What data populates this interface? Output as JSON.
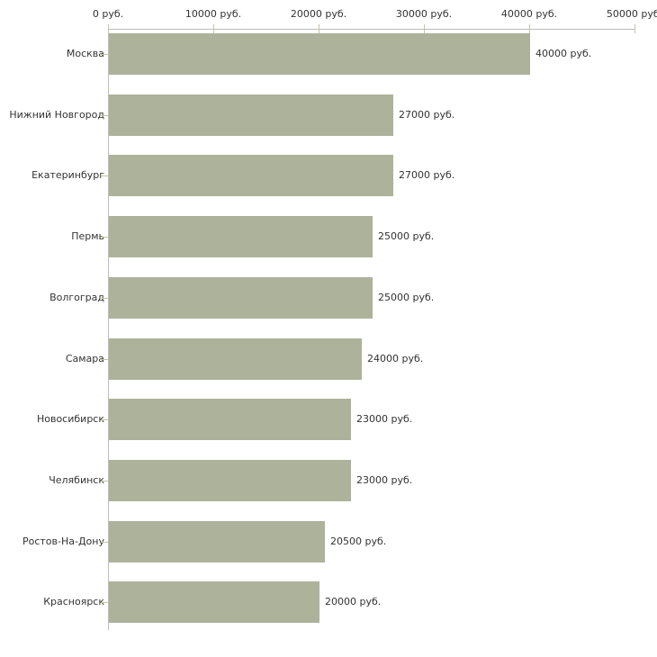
{
  "chart_data": {
    "type": "bar",
    "orientation": "horizontal",
    "title": "",
    "xlabel": "",
    "ylabel": "",
    "grid": false,
    "legend": false,
    "categories": [
      "Москва",
      "Нижний Новгород",
      "Екатеринбург",
      "Пермь",
      "Волгоград",
      "Самара",
      "Новосибирск",
      "Челябинск",
      "Ростов-На-Дону",
      "Красноярск"
    ],
    "values": [
      40000,
      27000,
      27000,
      25000,
      25000,
      24000,
      23000,
      23000,
      20500,
      20000
    ],
    "value_labels": [
      "40000 руб.",
      "27000 руб.",
      "27000 руб.",
      "25000 руб.",
      "25000 руб.",
      "24000 руб.",
      "23000 руб.",
      "23000 руб.",
      "20500 руб.",
      "20000 руб."
    ],
    "x_axis": {
      "position": "top",
      "min": 0,
      "max": 50000,
      "ticks": [
        0,
        10000,
        20000,
        30000,
        40000,
        50000
      ],
      "tick_labels": [
        "0 руб.",
        "10000 руб.",
        "20000 руб.",
        "30000 руб.",
        "40000 руб.",
        "50000 руб."
      ]
    },
    "colors": {
      "bar_fill": "#acb39a",
      "axis_line": "#bcbcbc",
      "tick_mark": "#c6c6a0",
      "text": "#333333",
      "background": "#ffffff"
    }
  }
}
